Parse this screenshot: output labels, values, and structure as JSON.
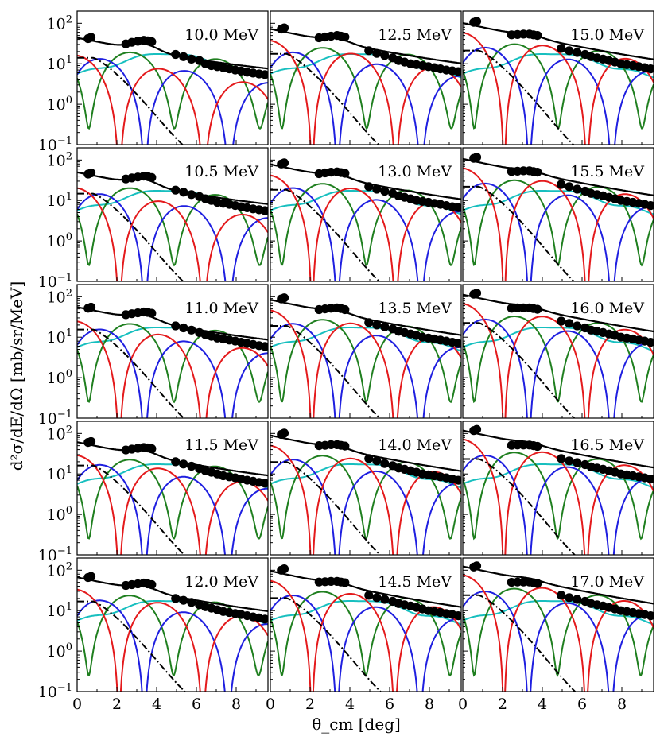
{
  "chart_data": {
    "type": "line",
    "layout": "5x3 grid of panels, shared axes",
    "xlabel": "θ_cm [deg]",
    "ylabel": "d²σ/dE/dΩ [mb/sr/MeV]",
    "xlim": [
      0,
      9.6
    ],
    "ylim": [
      0.1,
      200
    ],
    "yscale": "log",
    "grid": false,
    "xticks": [
      "0",
      "2",
      "4",
      "6",
      "8"
    ],
    "yticks": [
      {
        "value": 0.1,
        "label": "10",
        "exp": "−1"
      },
      {
        "value": 1,
        "label": "10",
        "exp": "0"
      },
      {
        "value": 10,
        "label": "10",
        "exp": "1"
      },
      {
        "value": 100,
        "label": "10",
        "exp": "2"
      }
    ],
    "series_colors": {
      "total": "#000000",
      "red": "#e41a1c",
      "blue": "#1f1fe0",
      "green": "#1f7f1f",
      "cyan": "#17bfbf",
      "dashdot": "#000000",
      "data": "#000000"
    },
    "panels": [
      {
        "label": "10.0 MeV",
        "E": 10.0,
        "data_x": [
          0.55,
          0.7,
          2.45,
          2.75,
          3.05,
          3.35,
          3.55,
          3.75,
          4.95,
          5.35,
          5.75,
          6.15,
          6.45,
          6.75,
          7.05,
          7.35,
          7.65,
          7.95,
          8.25,
          8.55,
          8.85,
          9.15,
          9.45
        ],
        "data_y": [
          42,
          45,
          31,
          34,
          36,
          38,
          37,
          35,
          17,
          15,
          13,
          12,
          10,
          9,
          8.5,
          8,
          7.5,
          7,
          6.6,
          6.2,
          5.9,
          5.6,
          5.4
        ]
      },
      {
        "label": "12.5 MeV",
        "E": 12.5,
        "data_x": [
          0.55,
          0.7,
          2.45,
          2.75,
          3.05,
          3.35,
          3.55,
          3.75,
          4.95,
          5.35,
          5.75,
          6.15,
          6.45,
          6.75,
          7.05,
          7.35,
          7.65,
          7.95,
          8.25,
          8.55,
          8.85,
          9.15,
          9.45
        ],
        "data_y": [
          72,
          77,
          44,
          46,
          48,
          50,
          48,
          46,
          21,
          18,
          16,
          14,
          12,
          11,
          10,
          9.5,
          9,
          8.5,
          8,
          7.5,
          7,
          6.7,
          6.4
        ]
      },
      {
        "label": "15.0 MeV",
        "E": 15.0,
        "data_x": [
          0.55,
          0.7,
          2.45,
          2.75,
          3.05,
          3.35,
          3.55,
          3.75,
          4.95,
          5.35,
          5.75,
          6.15,
          6.45,
          6.75,
          7.05,
          7.35,
          7.65,
          7.95,
          8.25,
          8.55,
          8.85,
          9.15,
          9.45
        ],
        "data_y": [
          105,
          112,
          52,
          53,
          54,
          54,
          52,
          50,
          24,
          21,
          19,
          17,
          15,
          14,
          13,
          12,
          11,
          10,
          9.5,
          9,
          8.5,
          8,
          7.5
        ]
      },
      {
        "label": "10.5 MeV",
        "E": 10.5,
        "data_x": [
          0.55,
          0.7,
          2.45,
          2.75,
          3.05,
          3.35,
          3.55,
          3.75,
          4.95,
          5.35,
          5.75,
          6.15,
          6.45,
          6.75,
          7.05,
          7.35,
          7.65,
          7.95,
          8.25,
          8.55,
          8.85,
          9.15,
          9.45
        ],
        "data_y": [
          45,
          48,
          34,
          36,
          38,
          40,
          39,
          37,
          18,
          16,
          14,
          12.5,
          11,
          10,
          9,
          8.5,
          8,
          7.5,
          7,
          6.6,
          6.2,
          5.9,
          5.6
        ]
      },
      {
        "label": "13.0 MeV",
        "E": 13.0,
        "data_x": [
          0.55,
          0.7,
          2.45,
          2.75,
          3.05,
          3.35,
          3.55,
          3.75,
          4.95,
          5.35,
          5.75,
          6.15,
          6.45,
          6.75,
          7.05,
          7.35,
          7.65,
          7.95,
          8.25,
          8.55,
          8.85,
          9.15,
          9.45
        ],
        "data_y": [
          80,
          85,
          46,
          48,
          50,
          51,
          49,
          47,
          22,
          19,
          17,
          15,
          13,
          12,
          11,
          10,
          9.5,
          9,
          8.5,
          8,
          7.5,
          7,
          6.7
        ]
      },
      {
        "label": "15.5 MeV",
        "E": 15.5,
        "data_x": [
          0.55,
          0.7,
          2.45,
          2.75,
          3.05,
          3.35,
          3.55,
          3.75,
          4.95,
          5.35,
          5.75,
          6.15,
          6.45,
          6.75,
          7.05,
          7.35,
          7.65,
          7.95,
          8.25,
          8.55,
          8.85,
          9.15,
          9.45
        ],
        "data_y": [
          110,
          118,
          52,
          53,
          54,
          54,
          52,
          50,
          25,
          22,
          19,
          17,
          15,
          14,
          13,
          12,
          11,
          10,
          9.5,
          9,
          8.5,
          8,
          7.5
        ]
      },
      {
        "label": "11.0 MeV",
        "E": 11.0,
        "data_x": [
          0.55,
          0.7,
          2.45,
          2.75,
          3.05,
          3.35,
          3.55,
          3.75,
          4.95,
          5.35,
          5.75,
          6.15,
          6.45,
          6.75,
          7.05,
          7.35,
          7.65,
          7.95,
          8.25,
          8.55,
          8.85,
          9.15,
          9.45
        ],
        "data_y": [
          52,
          55,
          36,
          38,
          40,
          42,
          41,
          39,
          19,
          17,
          15,
          13,
          11.5,
          10.5,
          9.5,
          9,
          8.5,
          8,
          7.5,
          7,
          6.6,
          6.2,
          5.9
        ]
      },
      {
        "label": "13.5 MeV",
        "E": 13.5,
        "data_x": [
          0.55,
          0.7,
          2.45,
          2.75,
          3.05,
          3.35,
          3.55,
          3.75,
          4.95,
          5.35,
          5.75,
          6.15,
          6.45,
          6.75,
          7.05,
          7.35,
          7.65,
          7.95,
          8.25,
          8.55,
          8.85,
          9.15,
          9.45
        ],
        "data_y": [
          88,
          94,
          48,
          50,
          52,
          53,
          51,
          48,
          23,
          20,
          18,
          16,
          14,
          13,
          12,
          11,
          10,
          9.5,
          9,
          8.5,
          8,
          7.5,
          7
        ]
      },
      {
        "label": "16.0 MeV",
        "E": 16.0,
        "data_x": [
          0.55,
          0.7,
          2.45,
          2.75,
          3.05,
          3.35,
          3.55,
          3.75,
          4.95,
          5.35,
          5.75,
          6.15,
          6.45,
          6.75,
          7.05,
          7.35,
          7.65,
          7.95,
          8.25,
          8.55,
          8.85,
          9.15,
          9.45
        ],
        "data_y": [
          115,
          123,
          52,
          53,
          53,
          53,
          51,
          49,
          25,
          22,
          19,
          17,
          15,
          14,
          13,
          12,
          11,
          10,
          9.5,
          9,
          8.5,
          8,
          7.5
        ]
      },
      {
        "label": "11.5 MeV",
        "E": 11.5,
        "data_x": [
          0.55,
          0.7,
          2.45,
          2.75,
          3.05,
          3.35,
          3.55,
          3.75,
          4.95,
          5.35,
          5.75,
          6.15,
          6.45,
          6.75,
          7.05,
          7.35,
          7.65,
          7.95,
          8.25,
          8.55,
          8.85,
          9.15,
          9.45
        ],
        "data_y": [
          60,
          63,
          39,
          41,
          43,
          45,
          44,
          42,
          20,
          17.5,
          15.5,
          13.5,
          12,
          11,
          10,
          9,
          8.5,
          8,
          7.5,
          7,
          6.6,
          6.2,
          5.9
        ]
      },
      {
        "label": "14.0 MeV",
        "E": 14.0,
        "data_x": [
          0.55,
          0.7,
          2.45,
          2.75,
          3.05,
          3.35,
          3.55,
          3.75,
          4.95,
          5.35,
          5.75,
          6.15,
          6.45,
          6.75,
          7.05,
          7.35,
          7.65,
          7.95,
          8.25,
          8.55,
          8.85,
          9.15,
          9.45
        ],
        "data_y": [
          95,
          102,
          50,
          51,
          53,
          53,
          51,
          49,
          24,
          21,
          18,
          16,
          14,
          13,
          12,
          11,
          10,
          9.5,
          9,
          8.5,
          8,
          7.5,
          7
        ]
      },
      {
        "label": "16.5 MeV",
        "E": 16.5,
        "data_x": [
          0.55,
          0.7,
          2.45,
          2.75,
          3.05,
          3.35,
          3.55,
          3.75,
          4.95,
          5.35,
          5.75,
          6.15,
          6.45,
          6.75,
          7.05,
          7.35,
          7.65,
          7.95,
          8.25,
          8.55,
          8.85,
          9.15,
          9.45
        ],
        "data_y": [
          118,
          126,
          51,
          52,
          52,
          52,
          50,
          48,
          24,
          21,
          19,
          17,
          15,
          14,
          13,
          12,
          11,
          10,
          9.5,
          9,
          8.5,
          8,
          7.5
        ]
      },
      {
        "label": "12.0 MeV",
        "E": 12.0,
        "data_x": [
          0.55,
          0.7,
          2.45,
          2.75,
          3.05,
          3.35,
          3.55,
          3.75,
          4.95,
          5.35,
          5.75,
          6.15,
          6.45,
          6.75,
          7.05,
          7.35,
          7.65,
          7.95,
          8.25,
          8.55,
          8.85,
          9.15,
          9.45
        ],
        "data_y": [
          66,
          70,
          42,
          44,
          46,
          48,
          46,
          44,
          20,
          18,
          16,
          14,
          12.5,
          11.5,
          10.5,
          9.5,
          9,
          8.5,
          8,
          7.5,
          7,
          6.6,
          6.2
        ]
      },
      {
        "label": "14.5 MeV",
        "E": 14.5,
        "data_x": [
          0.55,
          0.7,
          2.45,
          2.75,
          3.05,
          3.35,
          3.55,
          3.75,
          4.95,
          5.35,
          5.75,
          6.15,
          6.45,
          6.75,
          7.05,
          7.35,
          7.65,
          7.95,
          8.25,
          8.55,
          8.85,
          9.15,
          9.45
        ],
        "data_y": [
          100,
          108,
          51,
          52,
          53,
          53,
          51,
          49,
          24,
          21,
          19,
          17,
          15,
          14,
          13,
          12,
          11,
          10,
          9.5,
          9,
          8.5,
          8,
          7.5
        ]
      },
      {
        "label": "17.0 MeV",
        "E": 17.0,
        "data_x": [
          0.55,
          0.7,
          2.45,
          2.75,
          3.05,
          3.35,
          3.55,
          3.75,
          4.95,
          5.35,
          5.75,
          6.15,
          6.45,
          6.75,
          7.05,
          7.35,
          7.65,
          7.95,
          8.25,
          8.55,
          8.85,
          9.15,
          9.45
        ],
        "data_y": [
          120,
          128,
          50,
          51,
          51,
          51,
          49,
          47,
          24,
          21,
          19,
          17,
          15,
          14,
          13,
          12,
          11,
          10,
          9.5,
          9,
          8.5,
          8,
          7.5
        ]
      }
    ]
  }
}
